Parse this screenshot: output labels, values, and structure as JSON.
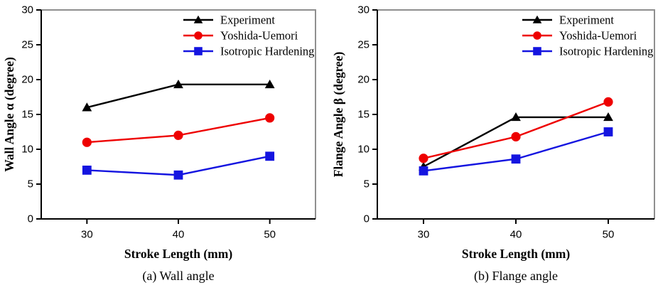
{
  "figure": {
    "background": "#ffffff",
    "description_labels": {
      "left_caption": "(a) Wall angle",
      "right_caption": "(b) Flange angle"
    }
  },
  "colors": {
    "experiment": "#000000",
    "yoshida_uemori": "#ee0000",
    "isotropic_hardening": "#1414e0",
    "axis": "#000000",
    "frame_gray": "#8f8f8f",
    "text": "#000000"
  },
  "chart_data": [
    {
      "type": "line",
      "title": "(a) Wall angle",
      "xlabel": "Stroke Length (mm)",
      "ylabel": "Wall Angle α (degree)",
      "x": [
        30,
        40,
        50
      ],
      "xticks": [
        30,
        40,
        50
      ],
      "yticks": [
        0,
        5,
        10,
        15,
        20,
        25,
        30
      ],
      "xlim": [
        25,
        55
      ],
      "ylim": [
        0,
        30
      ],
      "grid": false,
      "legend_position": "top-right",
      "series": [
        {
          "name": "Experiment",
          "marker": "triangle",
          "color": "#000000",
          "values": [
            16.0,
            19.3,
            19.3
          ]
        },
        {
          "name": "Yoshida-Uemori",
          "marker": "circle",
          "color": "#ee0000",
          "values": [
            11.0,
            12.0,
            14.5
          ]
        },
        {
          "name": "Isotropic Hardening",
          "marker": "square",
          "color": "#1414e0",
          "values": [
            7.0,
            6.3,
            9.0
          ]
        }
      ]
    },
    {
      "type": "line",
      "title": "(b) Flange angle",
      "xlabel": "Stroke Length (mm)",
      "ylabel": "Flange Angle β (degree)",
      "x": [
        30,
        40,
        50
      ],
      "xticks": [
        30,
        40,
        50
      ],
      "yticks": [
        0,
        5,
        10,
        15,
        20,
        25,
        30
      ],
      "xlim": [
        25,
        55
      ],
      "ylim": [
        0,
        30
      ],
      "grid": false,
      "legend_position": "top-right",
      "series": [
        {
          "name": "Experiment",
          "marker": "triangle",
          "color": "#000000",
          "values": [
            7.5,
            14.6,
            14.6
          ]
        },
        {
          "name": "Yoshida-Uemori",
          "marker": "circle",
          "color": "#ee0000",
          "values": [
            8.7,
            11.8,
            16.8
          ]
        },
        {
          "name": "Isotropic Hardening",
          "marker": "square",
          "color": "#1414e0",
          "values": [
            6.9,
            8.6,
            12.5
          ]
        }
      ]
    }
  ]
}
